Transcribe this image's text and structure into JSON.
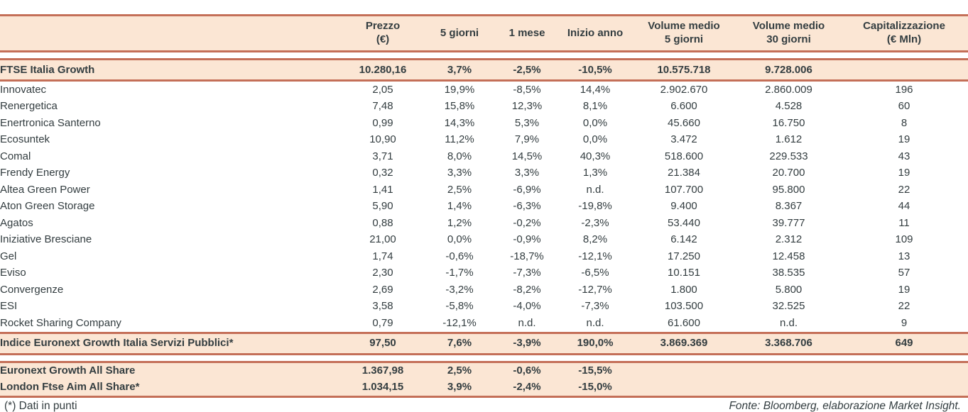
{
  "colors": {
    "accent_line": "#c46f58",
    "highlight_row_bg": "#fbe6d4",
    "text": "#333d40"
  },
  "table": {
    "columns": [
      "",
      "Prezzo\n(€)",
      "5 giorni",
      "1 mese",
      "Inizio anno",
      "Volume medio\n5 giorni",
      "Volume medio\n30 giorni",
      "Capitalizzazione\n(€ Mln)"
    ],
    "rows": [
      {
        "name": "FTSE Italia Growth",
        "kind": "highlight",
        "gap_before": true,
        "values": [
          "10.280,16",
          "3,7%",
          "-2,5%",
          "-10,5%",
          "10.575.718",
          "9.728.006",
          ""
        ]
      },
      {
        "name": "Innovatec",
        "kind": "plain",
        "gap_before": false,
        "values": [
          "2,05",
          "19,9%",
          "-8,5%",
          "14,4%",
          "2.902.670",
          "2.860.009",
          "196"
        ]
      },
      {
        "name": "Renergetica",
        "kind": "plain",
        "gap_before": false,
        "values": [
          "7,48",
          "15,8%",
          "12,3%",
          "8,1%",
          "6.600",
          "4.528",
          "60"
        ]
      },
      {
        "name": "Enertronica Santerno",
        "kind": "plain",
        "gap_before": false,
        "values": [
          "0,99",
          "14,3%",
          "5,3%",
          "0,0%",
          "45.660",
          "16.750",
          "8"
        ]
      },
      {
        "name": "Ecosuntek",
        "kind": "plain",
        "gap_before": false,
        "values": [
          "10,90",
          "11,2%",
          "7,9%",
          "0,0%",
          "3.472",
          "1.612",
          "19"
        ]
      },
      {
        "name": "Comal",
        "kind": "plain",
        "gap_before": false,
        "values": [
          "3,71",
          "8,0%",
          "14,5%",
          "40,3%",
          "518.600",
          "229.533",
          "43"
        ]
      },
      {
        "name": "Frendy Energy",
        "kind": "plain",
        "gap_before": false,
        "values": [
          "0,32",
          "3,3%",
          "3,3%",
          "1,3%",
          "21.384",
          "20.700",
          "19"
        ]
      },
      {
        "name": "Altea Green Power",
        "kind": "plain",
        "gap_before": false,
        "values": [
          "1,41",
          "2,5%",
          "-6,9%",
          "n.d.",
          "107.700",
          "95.800",
          "22"
        ]
      },
      {
        "name": "Aton Green Storage",
        "kind": "plain",
        "gap_before": false,
        "values": [
          "5,90",
          "1,4%",
          "-6,3%",
          "-19,8%",
          "9.400",
          "8.367",
          "44"
        ]
      },
      {
        "name": "Agatos",
        "kind": "plain",
        "gap_before": false,
        "values": [
          "0,88",
          "1,2%",
          "-0,2%",
          "-2,3%",
          "53.440",
          "39.777",
          "11"
        ]
      },
      {
        "name": "Iniziative Bresciane",
        "kind": "plain",
        "gap_before": false,
        "values": [
          "21,00",
          "0,0%",
          "-0,9%",
          "8,2%",
          "6.142",
          "2.312",
          "109"
        ]
      },
      {
        "name": "Gel",
        "kind": "plain",
        "gap_before": false,
        "values": [
          "1,74",
          "-0,6%",
          "-18,7%",
          "-12,1%",
          "17.250",
          "12.458",
          "13"
        ]
      },
      {
        "name": "Eviso",
        "kind": "plain",
        "gap_before": false,
        "values": [
          "2,30",
          "-1,7%",
          "-7,3%",
          "-6,5%",
          "10.151",
          "38.535",
          "57"
        ]
      },
      {
        "name": "Convergenze",
        "kind": "plain",
        "gap_before": false,
        "values": [
          "2,69",
          "-3,2%",
          "-8,2%",
          "-12,7%",
          "1.800",
          "5.800",
          "19"
        ]
      },
      {
        "name": "ESI",
        "kind": "plain",
        "gap_before": false,
        "values": [
          "3,58",
          "-5,8%",
          "-4,0%",
          "-7,3%",
          "103.500",
          "32.525",
          "22"
        ]
      },
      {
        "name": "Rocket Sharing Company",
        "kind": "plain",
        "gap_before": false,
        "values": [
          "0,79",
          "-12,1%",
          "n.d.",
          "n.d.",
          "61.600",
          "n.d.",
          "9"
        ]
      },
      {
        "name": "Indice Euronext Growth Italia Servizi Pubblici*",
        "kind": "highlight",
        "gap_before": false,
        "values": [
          "97,50",
          "7,6%",
          "-3,9%",
          "190,0%",
          "3.869.369",
          "3.368.706",
          "649"
        ]
      },
      {
        "name": "Euronext Growth All Share",
        "kind": "group-first",
        "gap_before": true,
        "values": [
          "1.367,98",
          "2,5%",
          "-0,6%",
          "-15,5%",
          "",
          "",
          ""
        ]
      },
      {
        "name": "London Ftse Aim All Share*",
        "kind": "group-last",
        "gap_before": false,
        "values": [
          "1.034,15",
          "3,9%",
          "-2,4%",
          "-15,0%",
          "",
          "",
          ""
        ]
      }
    ]
  },
  "footer": {
    "note": "(*) Dati in punti",
    "source": "Fonte: Bloomberg, elaborazione Market Insight."
  }
}
